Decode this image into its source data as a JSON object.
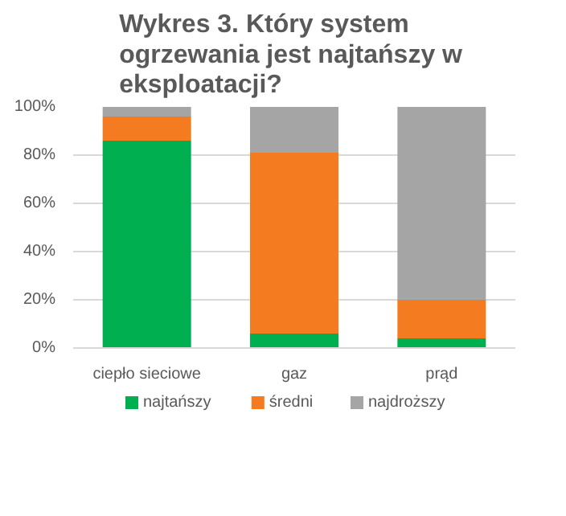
{
  "chart_data": {
    "type": "bar",
    "stacked": true,
    "title": "Wykres 3. Który system\nogrzewania jest najtańszy  w\neksploatacji?",
    "categories": [
      "ciepło sieciowe",
      "gaz",
      "prąd"
    ],
    "series": [
      {
        "name": "najtańszy",
        "color": "#00b050",
        "values": [
          86,
          6,
          4
        ]
      },
      {
        "name": "średni",
        "color": "#f47b20",
        "values": [
          10,
          75,
          16
        ]
      },
      {
        "name": "najdroższy",
        "color": "#a5a5a5",
        "values": [
          4,
          19,
          80
        ]
      }
    ],
    "ylim": [
      0,
      100
    ],
    "yticks": [
      {
        "value": 0,
        "label": "0%"
      },
      {
        "value": 20,
        "label": "20%"
      },
      {
        "value": 40,
        "label": "40%"
      },
      {
        "value": 60,
        "label": "60%"
      },
      {
        "value": 80,
        "label": "80%"
      },
      {
        "value": 100,
        "label": "100%"
      }
    ],
    "grid": "y",
    "legend": "bottom"
  }
}
